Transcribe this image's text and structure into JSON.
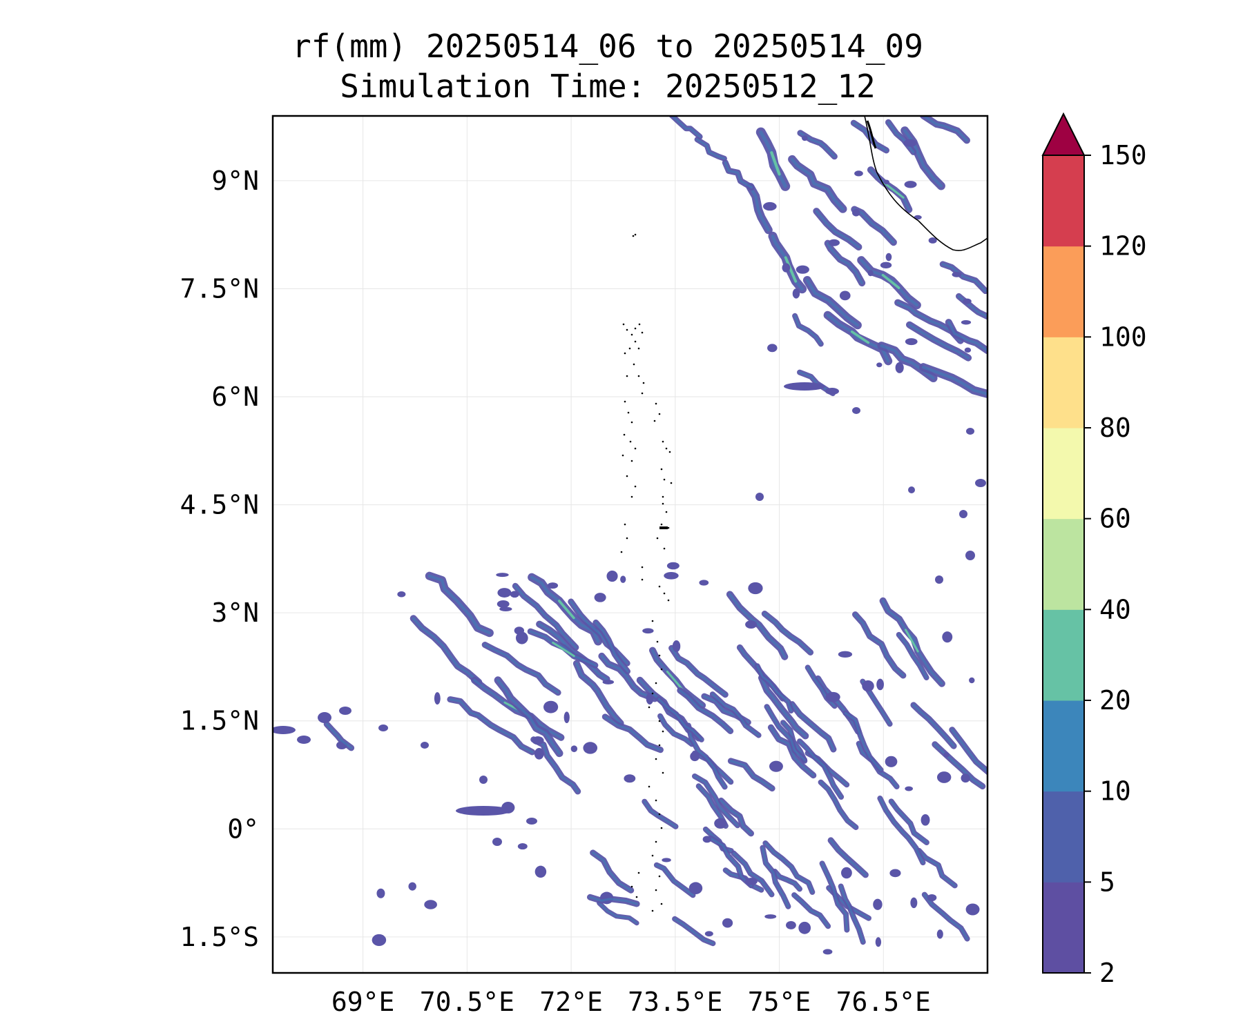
{
  "title": {
    "line1": "rf(mm) 20250514_06 to 20250514_09",
    "line2": "Simulation Time: 20250512_12"
  },
  "map": {
    "lon_range": [
      67.7,
      78.0
    ],
    "lat_range": [
      -2.0,
      9.9
    ],
    "lon_ticks": [
      {
        "value": 69.0,
        "label": "69°E"
      },
      {
        "value": 70.5,
        "label": "70.5°E"
      },
      {
        "value": 72.0,
        "label": "72°E"
      },
      {
        "value": 73.5,
        "label": "73.5°E"
      },
      {
        "value": 75.0,
        "label": "75°E"
      },
      {
        "value": 76.5,
        "label": "76.5°E"
      }
    ],
    "lat_ticks": [
      {
        "value": 9.0,
        "label": "9°N"
      },
      {
        "value": 7.5,
        "label": "7.5°N"
      },
      {
        "value": 6.0,
        "label": "6°N"
      },
      {
        "value": 4.5,
        "label": "4.5°N"
      },
      {
        "value": 3.0,
        "label": "3°N"
      },
      {
        "value": 1.5,
        "label": "1.5°N"
      },
      {
        "value": 0.0,
        "label": "0°"
      },
      {
        "value": -1.5,
        "label": "1.5°S"
      }
    ],
    "gridlines": true
  },
  "colorbar": {
    "levels": [
      "2",
      "5",
      "10",
      "20",
      "40",
      "60",
      "80",
      "100",
      "120",
      "150"
    ],
    "colors": [
      "#5e4fa2",
      "#4f61ab",
      "#3c86bb",
      "#66c2a5",
      "#bce4a0",
      "#f3f9ad",
      "#fee08b",
      "#fb9d59",
      "#d53e4f"
    ],
    "extend_color": "#9e0142",
    "extend": "max"
  },
  "rain_colors": {
    "base": "#5a55a8",
    "edge": "#4f61ab",
    "moderate": "#3a82b8",
    "heavy": "#66c2a5"
  }
}
